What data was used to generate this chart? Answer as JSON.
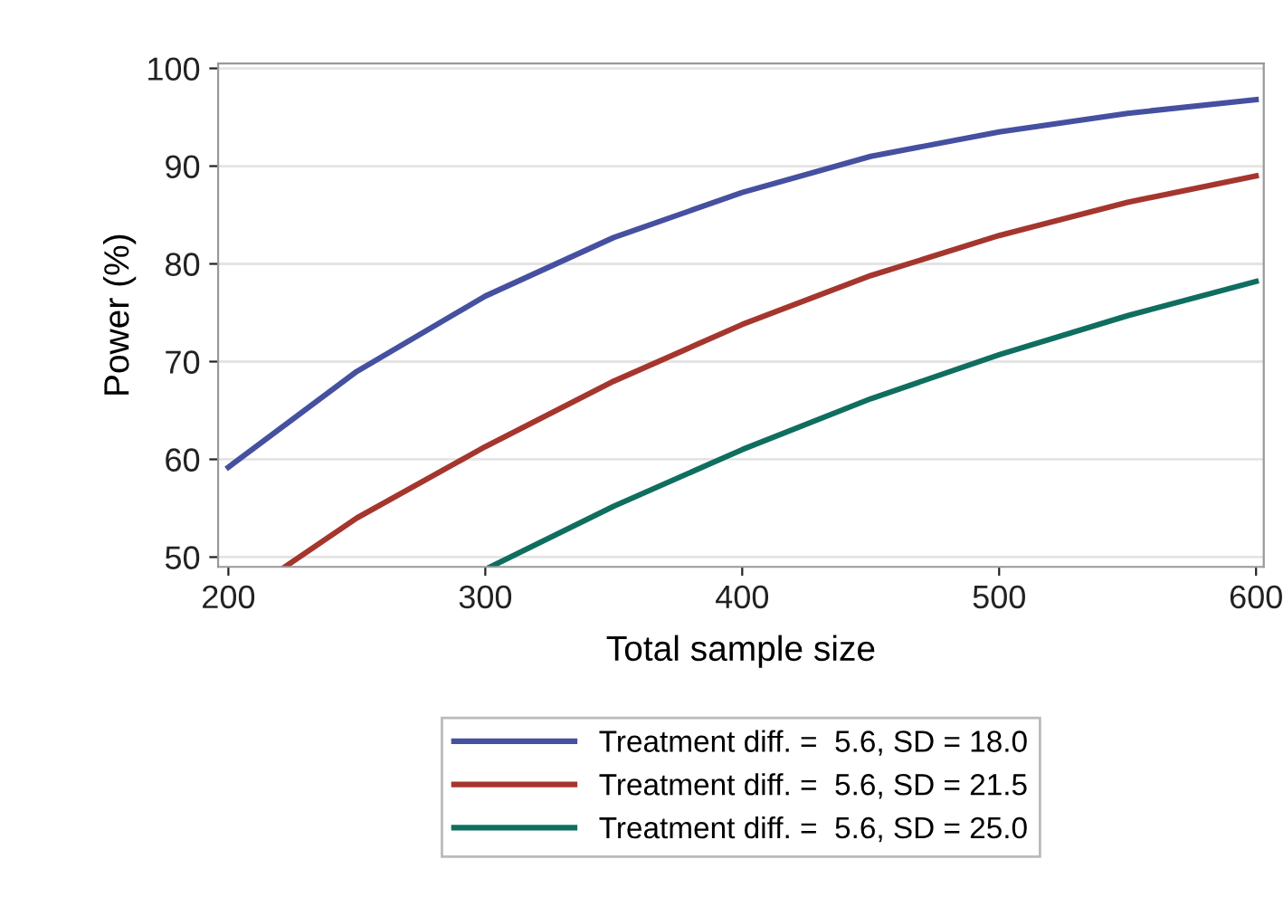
{
  "chart_data": {
    "type": "line",
    "xlabel": "Total sample size",
    "ylabel": "Power (%)",
    "xlim": [
      196,
      603
    ],
    "ylim": [
      49,
      100.5
    ],
    "xticks": [
      200,
      300,
      400,
      500,
      600
    ],
    "yticks": [
      50,
      60,
      70,
      80,
      90,
      100
    ],
    "grid": "y",
    "legend": "bottom",
    "marker": "none",
    "line_style": "solid",
    "series": [
      {
        "name": "Treatment diff. =  5.6, SD = 18.0",
        "color": "#4650a0",
        "x": [
          200,
          250,
          300,
          350,
          400,
          450,
          500,
          550,
          600
        ],
        "values": [
          59.2,
          69,
          76.7,
          82.7,
          87.3,
          91,
          93.5,
          95.4,
          96.8
        ]
      },
      {
        "name": "Treatment diff. =  5.6, SD = 21.5",
        "color": "#a5362e",
        "x": [
          222,
          250,
          300,
          350,
          400,
          450,
          500,
          550,
          600
        ],
        "values": [
          49,
          54,
          61.3,
          68,
          73.8,
          78.8,
          82.9,
          86.3,
          89
        ]
      },
      {
        "name": "Treatment diff. =  5.6, SD = 25.0",
        "color": "#0f6e60",
        "x": [
          302,
          350,
          400,
          450,
          500,
          550,
          600
        ],
        "values": [
          49,
          55.2,
          61,
          66.2,
          70.7,
          74.7,
          78.2
        ]
      }
    ]
  }
}
